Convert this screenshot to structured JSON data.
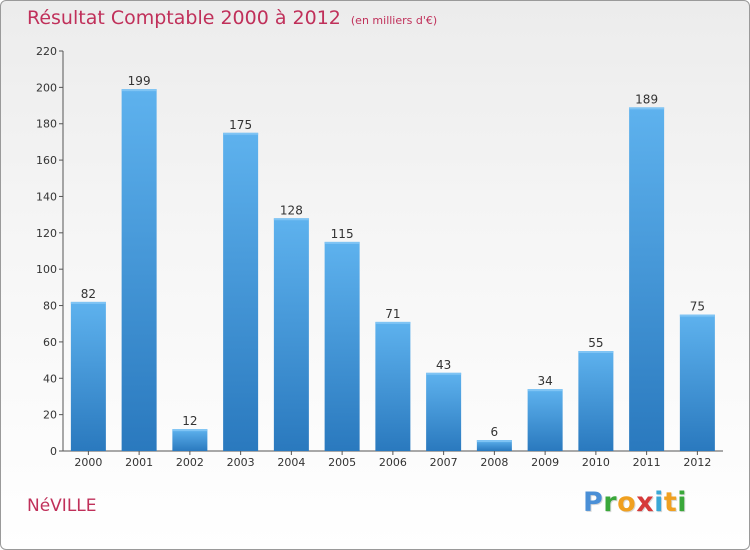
{
  "title": "Résultat Comptable 2000 à 2012",
  "unit": "(en milliers d'€)",
  "commune": "NéVILLE",
  "logo": {
    "letters": [
      {
        "char": "P",
        "color": "#4a8fd6"
      },
      {
        "char": "r",
        "color": "#3aa83a"
      },
      {
        "char": "o",
        "color": "#f0a020"
      },
      {
        "char": "x",
        "color": "#d63a3a"
      },
      {
        "char": "i",
        "color": "#3aa8d6"
      },
      {
        "char": "t",
        "color": "#f0a020"
      },
      {
        "char": "i",
        "color": "#3aa83a"
      }
    ]
  },
  "colors": {
    "bar": "#3f97dc",
    "barLight": "#5eb2ee",
    "barDark": "#2a79be",
    "title": "#c0305a"
  },
  "chart_data": {
    "type": "bar",
    "categories": [
      "2000",
      "2001",
      "2002",
      "2003",
      "2004",
      "2005",
      "2006",
      "2007",
      "2008",
      "2009",
      "2010",
      "2011",
      "2012"
    ],
    "values": [
      82,
      199,
      12,
      175,
      128,
      115,
      71,
      43,
      6,
      34,
      55,
      189,
      75
    ],
    "yticks": [
      0,
      20,
      40,
      60,
      80,
      100,
      120,
      140,
      160,
      180,
      200,
      220
    ],
    "ylim": [
      0,
      220
    ],
    "grid": false
  }
}
